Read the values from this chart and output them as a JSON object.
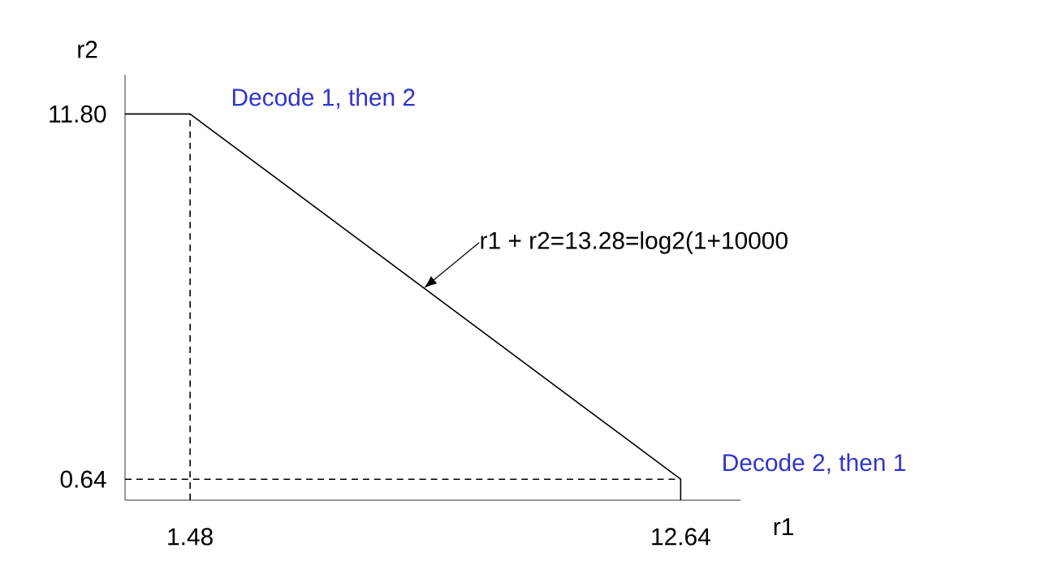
{
  "chart_data": {
    "type": "line",
    "xlabel": "r1",
    "ylabel": "r2",
    "xlim": [
      0,
      14
    ],
    "ylim": [
      0,
      13
    ],
    "xticks": [
      1.48,
      12.64
    ],
    "yticks": [
      0.64,
      {
        "value": 11.8,
        "label": "11.80"
      }
    ],
    "grid": false,
    "marker": "none",
    "series": [
      {
        "x": [
          0,
          1.48,
          12.64,
          12.64
        ],
        "values": [
          11.8,
          11.8,
          0.64,
          0
        ],
        "color": "#000000",
        "line_style": "solid"
      },
      {
        "x": [
          1.48,
          1.48
        ],
        "values": [
          0,
          11.8
        ],
        "color": "#000000",
        "line_style": "dashed"
      },
      {
        "x": [
          0,
          12.64
        ],
        "values": [
          0.64,
          0.64
        ],
        "color": "#000000",
        "line_style": "dashed"
      }
    ],
    "annotations": [
      {
        "text": "Decode 1, then 2",
        "x": 1.48,
        "y": 11.8
      },
      {
        "text": "Decode 2, then 1",
        "x": 12.64,
        "y": 0.64
      },
      {
        "text": "r1 + r2=13.28=log2(1+10000",
        "x": 6.8,
        "y": 6.48
      }
    ]
  }
}
